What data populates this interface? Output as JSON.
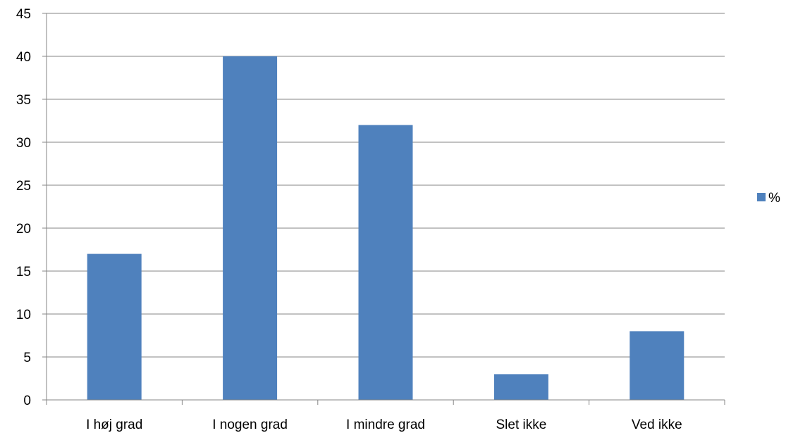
{
  "chart_data": {
    "type": "bar",
    "categories": [
      "I høj grad",
      "I nogen grad",
      "I mindre grad",
      "Slet ikke",
      "Ved ikke"
    ],
    "series": [
      {
        "name": "%",
        "values": [
          17,
          40,
          32,
          3,
          8
        ],
        "color": "#4F81BD"
      }
    ],
    "ylim": [
      0,
      45
    ],
    "ytick_step": 5,
    "yticks": [
      "0",
      "5",
      "10",
      "15",
      "20",
      "25",
      "30",
      "35",
      "40",
      "45"
    ],
    "grid": true,
    "legend_placement": "right",
    "title": "",
    "xlabel": "",
    "ylabel": ""
  }
}
